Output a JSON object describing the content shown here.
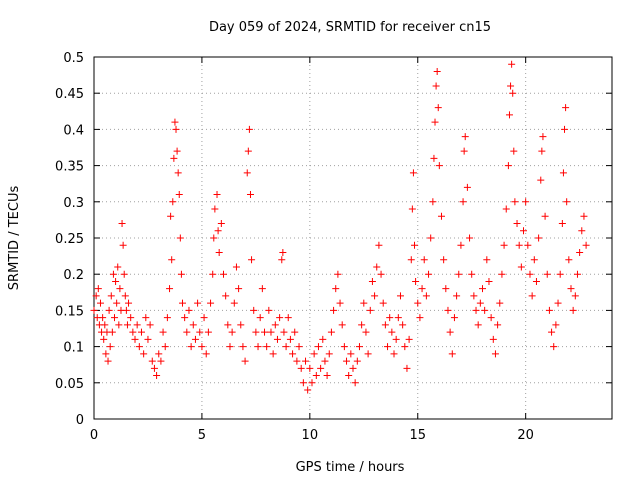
{
  "chart_data": {
    "type": "scatter",
    "title": "Day 059 of 2024, SRMTID for receiver cn15",
    "xlabel": "GPS time / hours",
    "ylabel": "SRMTID / TECUs",
    "xlim": [
      0,
      24
    ],
    "ylim": [
      0,
      0.5
    ],
    "xticks": [
      0,
      5,
      10,
      15,
      20
    ],
    "xtick_labels": [
      "0",
      "5",
      "10",
      "15",
      "20"
    ],
    "yticks": [
      0,
      0.05,
      0.1,
      0.15,
      0.2,
      0.25,
      0.3,
      0.35,
      0.4,
      0.45,
      0.5
    ],
    "ytick_labels": [
      "0",
      "0.05",
      "0.1",
      "0.15",
      "0.2",
      "0.25",
      "0.3",
      "0.35",
      "0.4",
      "0.45",
      "0.5"
    ],
    "grid": true,
    "marker": "plus",
    "color": "#ff0000",
    "series": [
      {
        "name": "SRMTID",
        "points": [
          [
            0.0,
            0.15
          ],
          [
            0.1,
            0.17
          ],
          [
            0.15,
            0.14
          ],
          [
            0.2,
            0.18
          ],
          [
            0.25,
            0.13
          ],
          [
            0.3,
            0.16
          ],
          [
            0.35,
            0.12
          ],
          [
            0.4,
            0.14
          ],
          [
            0.45,
            0.11
          ],
          [
            0.5,
            0.13
          ],
          [
            0.55,
            0.09
          ],
          [
            0.6,
            0.12
          ],
          [
            0.65,
            0.08
          ],
          [
            0.7,
            0.15
          ],
          [
            0.75,
            0.1
          ],
          [
            0.8,
            0.17
          ],
          [
            0.85,
            0.12
          ],
          [
            0.9,
            0.2
          ],
          [
            0.95,
            0.14
          ],
          [
            1.0,
            0.19
          ],
          [
            1.05,
            0.16
          ],
          [
            1.1,
            0.21
          ],
          [
            1.15,
            0.13
          ],
          [
            1.2,
            0.18
          ],
          [
            1.25,
            0.15
          ],
          [
            1.3,
            0.27
          ],
          [
            1.35,
            0.24
          ],
          [
            1.4,
            0.2
          ],
          [
            1.45,
            0.17
          ],
          [
            1.5,
            0.15
          ],
          [
            1.55,
            0.13
          ],
          [
            1.6,
            0.16
          ],
          [
            1.7,
            0.14
          ],
          [
            1.8,
            0.12
          ],
          [
            1.9,
            0.11
          ],
          [
            2.0,
            0.13
          ],
          [
            2.1,
            0.1
          ],
          [
            2.2,
            0.12
          ],
          [
            2.3,
            0.09
          ],
          [
            2.4,
            0.14
          ],
          [
            2.5,
            0.11
          ],
          [
            2.6,
            0.13
          ],
          [
            2.7,
            0.08
          ],
          [
            2.8,
            0.07
          ],
          [
            2.9,
            0.06
          ],
          [
            3.0,
            0.09
          ],
          [
            3.1,
            0.08
          ],
          [
            3.2,
            0.12
          ],
          [
            3.3,
            0.1
          ],
          [
            3.4,
            0.14
          ],
          [
            3.5,
            0.18
          ],
          [
            3.55,
            0.28
          ],
          [
            3.6,
            0.22
          ],
          [
            3.65,
            0.3
          ],
          [
            3.7,
            0.36
          ],
          [
            3.75,
            0.41
          ],
          [
            3.8,
            0.4
          ],
          [
            3.85,
            0.37
          ],
          [
            3.9,
            0.34
          ],
          [
            3.95,
            0.31
          ],
          [
            4.0,
            0.25
          ],
          [
            4.05,
            0.2
          ],
          [
            4.1,
            0.16
          ],
          [
            4.2,
            0.14
          ],
          [
            4.3,
            0.12
          ],
          [
            4.4,
            0.15
          ],
          [
            4.5,
            0.1
          ],
          [
            4.6,
            0.13
          ],
          [
            4.7,
            0.11
          ],
          [
            4.8,
            0.16
          ],
          [
            4.9,
            0.12
          ],
          [
            5.0,
            0.1
          ],
          [
            5.1,
            0.14
          ],
          [
            5.2,
            0.09
          ],
          [
            5.3,
            0.12
          ],
          [
            5.4,
            0.16
          ],
          [
            5.5,
            0.2
          ],
          [
            5.55,
            0.25
          ],
          [
            5.6,
            0.29
          ],
          [
            5.7,
            0.31
          ],
          [
            5.75,
            0.26
          ],
          [
            5.8,
            0.23
          ],
          [
            5.9,
            0.27
          ],
          [
            6.0,
            0.2
          ],
          [
            6.1,
            0.17
          ],
          [
            6.2,
            0.13
          ],
          [
            6.3,
            0.1
          ],
          [
            6.4,
            0.12
          ],
          [
            6.5,
            0.16
          ],
          [
            6.6,
            0.21
          ],
          [
            6.7,
            0.18
          ],
          [
            6.8,
            0.13
          ],
          [
            6.9,
            0.1
          ],
          [
            7.0,
            0.08
          ],
          [
            7.1,
            0.34
          ],
          [
            7.15,
            0.37
          ],
          [
            7.2,
            0.4
          ],
          [
            7.25,
            0.31
          ],
          [
            7.3,
            0.22
          ],
          [
            7.4,
            0.15
          ],
          [
            7.5,
            0.12
          ],
          [
            7.6,
            0.1
          ],
          [
            7.7,
            0.14
          ],
          [
            7.8,
            0.18
          ],
          [
            7.9,
            0.12
          ],
          [
            8.0,
            0.1
          ],
          [
            8.1,
            0.15
          ],
          [
            8.2,
            0.12
          ],
          [
            8.3,
            0.09
          ],
          [
            8.4,
            0.13
          ],
          [
            8.5,
            0.11
          ],
          [
            8.6,
            0.14
          ],
          [
            8.7,
            0.22
          ],
          [
            8.75,
            0.23
          ],
          [
            8.8,
            0.12
          ],
          [
            8.9,
            0.1
          ],
          [
            9.0,
            0.14
          ],
          [
            9.1,
            0.11
          ],
          [
            9.2,
            0.09
          ],
          [
            9.3,
            0.12
          ],
          [
            9.4,
            0.08
          ],
          [
            9.5,
            0.1
          ],
          [
            9.6,
            0.07
          ],
          [
            9.7,
            0.05
          ],
          [
            9.8,
            0.08
          ],
          [
            9.9,
            0.04
          ],
          [
            10.0,
            0.07
          ],
          [
            10.1,
            0.05
          ],
          [
            10.2,
            0.09
          ],
          [
            10.3,
            0.06
          ],
          [
            10.4,
            0.1
          ],
          [
            10.5,
            0.07
          ],
          [
            10.6,
            0.11
          ],
          [
            10.7,
            0.08
          ],
          [
            10.8,
            0.06
          ],
          [
            10.9,
            0.09
          ],
          [
            11.0,
            0.12
          ],
          [
            11.1,
            0.15
          ],
          [
            11.2,
            0.18
          ],
          [
            11.3,
            0.2
          ],
          [
            11.4,
            0.16
          ],
          [
            11.5,
            0.13
          ],
          [
            11.6,
            0.1
          ],
          [
            11.7,
            0.08
          ],
          [
            11.8,
            0.06
          ],
          [
            11.9,
            0.09
          ],
          [
            12.0,
            0.07
          ],
          [
            12.1,
            0.05
          ],
          [
            12.2,
            0.08
          ],
          [
            12.3,
            0.1
          ],
          [
            12.4,
            0.13
          ],
          [
            12.5,
            0.16
          ],
          [
            12.6,
            0.12
          ],
          [
            12.7,
            0.09
          ],
          [
            12.8,
            0.15
          ],
          [
            12.9,
            0.19
          ],
          [
            13.0,
            0.17
          ],
          [
            13.1,
            0.21
          ],
          [
            13.2,
            0.24
          ],
          [
            13.3,
            0.2
          ],
          [
            13.4,
            0.16
          ],
          [
            13.5,
            0.13
          ],
          [
            13.6,
            0.1
          ],
          [
            13.7,
            0.14
          ],
          [
            13.8,
            0.12
          ],
          [
            13.9,
            0.09
          ],
          [
            14.0,
            0.11
          ],
          [
            14.1,
            0.14
          ],
          [
            14.2,
            0.17
          ],
          [
            14.3,
            0.13
          ],
          [
            14.4,
            0.1
          ],
          [
            14.5,
            0.07
          ],
          [
            14.6,
            0.11
          ],
          [
            14.7,
            0.22
          ],
          [
            14.75,
            0.29
          ],
          [
            14.8,
            0.34
          ],
          [
            14.85,
            0.24
          ],
          [
            14.9,
            0.19
          ],
          [
            15.0,
            0.16
          ],
          [
            15.1,
            0.14
          ],
          [
            15.2,
            0.18
          ],
          [
            15.3,
            0.22
          ],
          [
            15.4,
            0.17
          ],
          [
            15.5,
            0.2
          ],
          [
            15.6,
            0.25
          ],
          [
            15.7,
            0.3
          ],
          [
            15.75,
            0.36
          ],
          [
            15.8,
            0.41
          ],
          [
            15.85,
            0.46
          ],
          [
            15.9,
            0.48
          ],
          [
            15.95,
            0.43
          ],
          [
            16.0,
            0.35
          ],
          [
            16.1,
            0.28
          ],
          [
            16.2,
            0.22
          ],
          [
            16.3,
            0.18
          ],
          [
            16.4,
            0.15
          ],
          [
            16.5,
            0.12
          ],
          [
            16.6,
            0.09
          ],
          [
            16.7,
            0.14
          ],
          [
            16.8,
            0.17
          ],
          [
            16.9,
            0.2
          ],
          [
            17.0,
            0.24
          ],
          [
            17.1,
            0.3
          ],
          [
            17.15,
            0.37
          ],
          [
            17.2,
            0.39
          ],
          [
            17.3,
            0.32
          ],
          [
            17.4,
            0.25
          ],
          [
            17.5,
            0.2
          ],
          [
            17.6,
            0.17
          ],
          [
            17.7,
            0.15
          ],
          [
            17.8,
            0.13
          ],
          [
            17.9,
            0.16
          ],
          [
            18.0,
            0.18
          ],
          [
            18.1,
            0.15
          ],
          [
            18.2,
            0.22
          ],
          [
            18.3,
            0.19
          ],
          [
            18.4,
            0.14
          ],
          [
            18.5,
            0.11
          ],
          [
            18.6,
            0.09
          ],
          [
            18.7,
            0.13
          ],
          [
            18.8,
            0.16
          ],
          [
            18.9,
            0.2
          ],
          [
            19.0,
            0.24
          ],
          [
            19.1,
            0.29
          ],
          [
            19.2,
            0.35
          ],
          [
            19.25,
            0.42
          ],
          [
            19.3,
            0.46
          ],
          [
            19.35,
            0.49
          ],
          [
            19.4,
            0.45
          ],
          [
            19.45,
            0.37
          ],
          [
            19.5,
            0.3
          ],
          [
            19.6,
            0.27
          ],
          [
            19.7,
            0.24
          ],
          [
            19.8,
            0.21
          ],
          [
            19.9,
            0.26
          ],
          [
            20.0,
            0.3
          ],
          [
            20.1,
            0.24
          ],
          [
            20.2,
            0.2
          ],
          [
            20.3,
            0.17
          ],
          [
            20.4,
            0.22
          ],
          [
            20.5,
            0.19
          ],
          [
            20.6,
            0.25
          ],
          [
            20.7,
            0.33
          ],
          [
            20.75,
            0.37
          ],
          [
            20.8,
            0.39
          ],
          [
            20.9,
            0.28
          ],
          [
            21.0,
            0.2
          ],
          [
            21.1,
            0.15
          ],
          [
            21.2,
            0.12
          ],
          [
            21.3,
            0.1
          ],
          [
            21.4,
            0.13
          ],
          [
            21.5,
            0.16
          ],
          [
            21.6,
            0.2
          ],
          [
            21.7,
            0.27
          ],
          [
            21.75,
            0.34
          ],
          [
            21.8,
            0.4
          ],
          [
            21.85,
            0.43
          ],
          [
            21.9,
            0.3
          ],
          [
            22.0,
            0.22
          ],
          [
            22.1,
            0.18
          ],
          [
            22.2,
            0.15
          ],
          [
            22.3,
            0.17
          ],
          [
            22.4,
            0.2
          ],
          [
            22.5,
            0.23
          ],
          [
            22.6,
            0.26
          ],
          [
            22.7,
            0.28
          ],
          [
            22.8,
            0.24
          ]
        ]
      }
    ]
  }
}
